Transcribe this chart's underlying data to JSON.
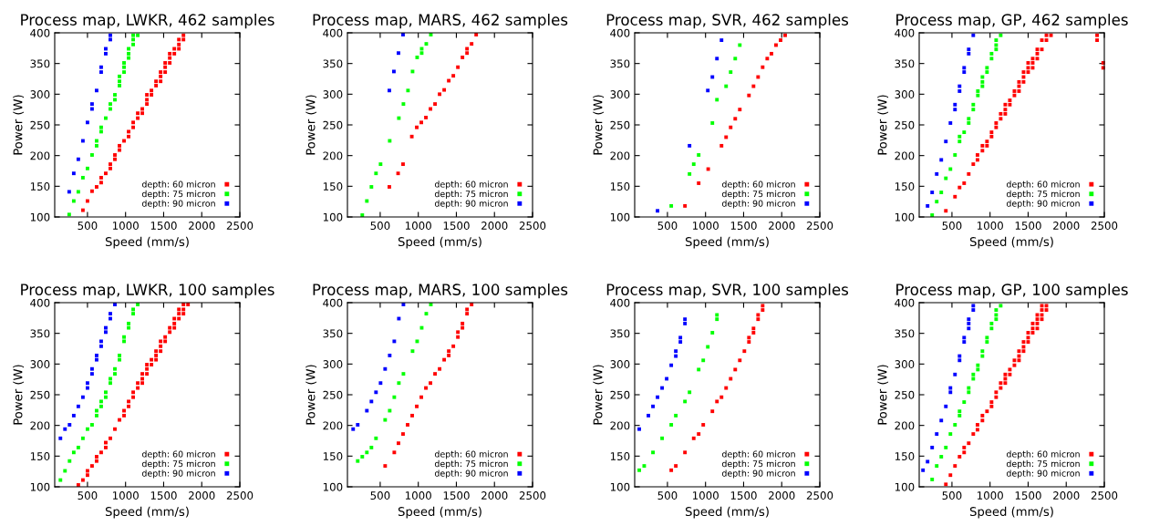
{
  "chart_data": [
    {
      "type": "scatter",
      "title": "Process map, LWKR, 462 samples",
      "xlabel": "Speed (mm/s)",
      "ylabel": "Power (W)",
      "xlim": [
        70,
        2500
      ],
      "ylim": [
        100,
        400
      ],
      "xticks": [
        500,
        1000,
        1500,
        2000,
        2500
      ],
      "yticks": [
        100,
        150,
        200,
        250,
        300,
        350,
        400
      ],
      "legend": "bottom right",
      "marker": "square",
      "series": [
        {
          "name": "depth: 60 micron",
          "color": "#ff0000",
          "x": [
            440,
            500,
            560,
            620,
            680,
            680,
            740,
            800,
            800,
            860,
            860,
            920,
            920,
            980,
            1040,
            1040,
            1100,
            1100,
            1160,
            1160,
            1220,
            1220,
            1280,
            1280,
            1280,
            1340,
            1340,
            1400,
            1400,
            1460,
            1460,
            1460,
            1520,
            1520,
            1520,
            1580,
            1580,
            1580,
            1640,
            1640,
            1700,
            1700,
            1700,
            1760,
            1760
          ],
          "values": [
            111,
            126,
            142,
            149,
            156,
            164,
            171,
            179,
            186,
            194,
            201,
            209,
            216,
            224,
            231,
            239,
            246,
            254,
            261,
            269,
            269,
            276,
            284,
            291,
            299,
            299,
            306,
            314,
            321,
            321,
            329,
            336,
            336,
            344,
            351,
            351,
            359,
            366,
            366,
            374,
            374,
            381,
            389,
            389,
            396
          ]
        },
        {
          "name": "depth: 75 micron",
          "color": "#00ff00",
          "x": [
            260,
            320,
            380,
            440,
            500,
            560,
            620,
            620,
            680,
            680,
            740,
            800,
            800,
            860,
            860,
            920,
            920,
            920,
            980,
            980,
            980,
            1040,
            1040,
            1040,
            1100,
            1100,
            1100,
            1160
          ],
          "values": [
            104,
            126,
            141,
            164,
            179,
            201,
            216,
            224,
            239,
            246,
            261,
            276,
            284,
            291,
            299,
            314,
            321,
            329,
            336,
            344,
            351,
            359,
            366,
            374,
            381,
            389,
            396,
            396
          ]
        },
        {
          "name": "depth: 90 micron",
          "color": "#0000ff",
          "x": [
            260,
            320,
            380,
            440,
            500,
            560,
            560,
            620,
            680,
            680,
            740,
            740,
            800,
            800
          ],
          "values": [
            141,
            171,
            194,
            224,
            254,
            276,
            284,
            306,
            336,
            344,
            366,
            374,
            389,
            396
          ]
        }
      ]
    },
    {
      "type": "scatter",
      "title": "Process map, MARS, 462 samples",
      "xlabel": "Speed (mm/s)",
      "ylabel": "Power (W)",
      "xlim": [
        70,
        2500
      ],
      "ylim": [
        100,
        400
      ],
      "xticks": [
        500,
        1000,
        1500,
        2000,
        2500
      ],
      "yticks": [
        100,
        150,
        200,
        250,
        300,
        350,
        400
      ],
      "legend": "bottom right",
      "marker": "square",
      "series": [
        {
          "name": "depth: 60 micron",
          "color": "#ff0000",
          "x": [
            620,
            735,
            800,
            915,
            980,
            1040,
            1100,
            1160,
            1220,
            1280,
            1340,
            1400,
            1460,
            1520,
            1580,
            1640,
            1640,
            1700,
            1760
          ],
          "values": [
            149,
            171,
            186,
            231,
            246,
            254,
            262,
            276,
            284,
            300,
            307,
            322,
            330,
            344,
            360,
            367,
            374,
            382,
            397
          ]
        },
        {
          "name": "depth: 75 micron",
          "color": "#00ff00",
          "x": [
            265,
            325,
            385,
            445,
            505,
            625,
            745,
            805,
            865,
            925,
            985,
            1045,
            1045,
            1105,
            1165
          ],
          "values": [
            103,
            126,
            149,
            171,
            186,
            224,
            261,
            284,
            306,
            337,
            360,
            367,
            374,
            382,
            397
          ]
        },
        {
          "name": "depth: 90 micron",
          "color": "#0000ff",
          "x": [
            620,
            680,
            740,
            800
          ],
          "values": [
            306,
            337,
            367,
            397
          ]
        }
      ]
    },
    {
      "type": "scatter",
      "title": "Process map, SVR, 462 samples",
      "xlabel": "Speed (mm/s)",
      "ylabel": "Power (W)",
      "xlim": [
        70,
        2500
      ],
      "ylim": [
        100,
        400
      ],
      "xticks": [
        500,
        1000,
        1500,
        2000,
        2500
      ],
      "yticks": [
        100,
        150,
        200,
        250,
        300,
        350,
        400
      ],
      "legend": "bottom right",
      "marker": "square",
      "series": [
        {
          "name": "depth: 60 micron",
          "color": "#ff0000",
          "x": [
            730,
            910,
            1035,
            1210,
            1270,
            1330,
            1390,
            1450,
            1570,
            1630,
            1690,
            1750,
            1810,
            1865,
            1925,
            1985,
            2045
          ],
          "values": [
            118,
            155,
            178,
            216,
            230,
            246,
            260,
            275,
            298,
            313,
            328,
            344,
            358,
            366,
            380,
            388,
            396
          ]
        },
        {
          "name": "depth: 75 micron",
          "color": "#00ff00",
          "x": [
            550,
            790,
            845,
            910,
            1090,
            1150,
            1270,
            1330,
            1390,
            1450
          ],
          "values": [
            118,
            170,
            186,
            201,
            253,
            291,
            313,
            336,
            358,
            380
          ]
        },
        {
          "name": "depth: 90 micron",
          "color": "#0000ff",
          "x": [
            370,
            790,
            1030,
            1090,
            1150,
            1210
          ],
          "values": [
            110,
            216,
            306,
            328,
            358,
            388
          ]
        }
      ]
    },
    {
      "type": "scatter",
      "title": "Process map, GP, 462 samples",
      "xlabel": "Speed (mm/s)",
      "ylabel": "Power (W)",
      "xlim": [
        70,
        2500
      ],
      "ylim": [
        100,
        400
      ],
      "xticks": [
        500,
        1000,
        1500,
        2000,
        2500
      ],
      "yticks": [
        100,
        150,
        200,
        250,
        300,
        350,
        400
      ],
      "legend": "bottom right",
      "marker": "square",
      "series": [
        {
          "name": "depth: 60 micron",
          "color": "#ff0000",
          "x": [
            420,
            540,
            600,
            660,
            720,
            780,
            835,
            835,
            900,
            900,
            960,
            960,
            1020,
            1020,
            1080,
            1080,
            1140,
            1140,
            1200,
            1200,
            1200,
            1260,
            1260,
            1320,
            1320,
            1380,
            1380,
            1380,
            1440,
            1440,
            1440,
            1500,
            1500,
            1500,
            1560,
            1560,
            1560,
            1620,
            1620,
            1620,
            1680,
            1680,
            1740,
            1740,
            1800,
            2405,
            2405,
            2485,
            2485
          ],
          "values": [
            110,
            133,
            148,
            155,
            170,
            186,
            193,
            201,
            208,
            216,
            216,
            223,
            231,
            238,
            246,
            253,
            260,
            268,
            268,
            275,
            283,
            283,
            290,
            298,
            305,
            305,
            313,
            320,
            320,
            328,
            336,
            336,
            343,
            351,
            343,
            351,
            358,
            358,
            366,
            373,
            373,
            388,
            388,
            396,
            396,
            396,
            388,
            351,
            343
          ]
        },
        {
          "name": "depth: 75 micron",
          "color": "#00ff00",
          "x": [
            240,
            300,
            360,
            420,
            480,
            540,
            600,
            600,
            660,
            720,
            720,
            780,
            780,
            840,
            840,
            900,
            900,
            900,
            960,
            960,
            1020,
            1020,
            1080,
            1080,
            1080,
            1140
          ],
          "values": [
            103,
            125,
            140,
            163,
            178,
            201,
            223,
            231,
            238,
            253,
            260,
            275,
            283,
            298,
            305,
            313,
            320,
            328,
            336,
            343,
            358,
            366,
            373,
            380,
            388,
            396
          ]
        },
        {
          "name": "depth: 90 micron",
          "color": "#0000ff",
          "x": [
            180,
            240,
            300,
            360,
            420,
            480,
            540,
            540,
            600,
            600,
            660,
            660,
            720,
            720,
            780
          ],
          "values": [
            118,
            140,
            170,
            193,
            223,
            253,
            275,
            283,
            305,
            313,
            336,
            343,
            366,
            373,
            396
          ]
        }
      ]
    },
    {
      "type": "scatter",
      "title": "Process map, LWKR, 100 samples",
      "xlabel": "Speed (mm/s)",
      "ylabel": "Power (W)",
      "xlim": [
        70,
        2500
      ],
      "ylim": [
        100,
        400
      ],
      "xticks": [
        500,
        1000,
        1500,
        2000,
        2500
      ],
      "yticks": [
        100,
        150,
        200,
        250,
        300,
        350,
        400
      ],
      "legend": "bottom right",
      "marker": "square",
      "series": [
        {
          "name": "depth: 60 micron",
          "color": "#ff0000",
          "x": [
            380,
            440,
            500,
            500,
            560,
            620,
            620,
            680,
            740,
            740,
            800,
            860,
            920,
            980,
            980,
            1040,
            1040,
            1100,
            1100,
            1160,
            1160,
            1220,
            1220,
            1220,
            1280,
            1280,
            1280,
            1340,
            1340,
            1400,
            1400,
            1400,
            1460,
            1460,
            1460,
            1520,
            1520,
            1580,
            1580,
            1640,
            1640,
            1640,
            1700,
            1700,
            1700,
            1760,
            1760,
            1760,
            1820
          ],
          "values": [
            103,
            111,
            119,
            126,
            134,
            142,
            149,
            156,
            164,
            172,
            179,
            194,
            209,
            216,
            224,
            231,
            239,
            246,
            254,
            261,
            269,
            269,
            276,
            284,
            284,
            292,
            299,
            299,
            307,
            307,
            314,
            321,
            321,
            329,
            337,
            337,
            344,
            352,
            359,
            359,
            366,
            374,
            374,
            382,
            389,
            382,
            389,
            397,
            397
          ]
        },
        {
          "name": "depth: 75 micron",
          "color": "#00ff00",
          "x": [
            145,
            205,
            265,
            320,
            380,
            440,
            500,
            560,
            620,
            620,
            680,
            680,
            740,
            740,
            800,
            800,
            860,
            860,
            920,
            920,
            980,
            980,
            1040,
            1040,
            1100,
            1100,
            1160
          ],
          "values": [
            111,
            126,
            142,
            156,
            164,
            179,
            194,
            201,
            216,
            224,
            231,
            239,
            246,
            254,
            269,
            276,
            284,
            292,
            307,
            314,
            337,
            344,
            359,
            366,
            382,
            389,
            397
          ]
        },
        {
          "name": "depth: 90 micron",
          "color": "#0000ff",
          "x": [
            145,
            205,
            265,
            320,
            380,
            440,
            500,
            500,
            560,
            560,
            620,
            620,
            680,
            680,
            740,
            740,
            800,
            800,
            860
          ],
          "values": [
            179,
            194,
            201,
            216,
            231,
            246,
            261,
            269,
            284,
            292,
            307,
            314,
            329,
            337,
            352,
            359,
            374,
            382,
            397
          ]
        }
      ]
    },
    {
      "type": "scatter",
      "title": "Process map, MARS, 100 samples",
      "xlabel": "Speed (mm/s)",
      "ylabel": "Power (W)",
      "xlim": [
        70,
        2500
      ],
      "ylim": [
        100,
        400
      ],
      "xticks": [
        500,
        1000,
        1500,
        2000,
        2500
      ],
      "yticks": [
        100,
        150,
        200,
        250,
        300,
        350,
        400
      ],
      "legend": "bottom right",
      "marker": "square",
      "series": [
        {
          "name": "depth: 60 micron",
          "color": "#ff0000",
          "x": [
            565,
            685,
            740,
            800,
            860,
            920,
            980,
            1040,
            1100,
            1160,
            1220,
            1280,
            1340,
            1400,
            1400,
            1460,
            1520,
            1520,
            1580,
            1580,
            1640,
            1640,
            1700
          ],
          "values": [
            134,
            156,
            171,
            186,
            201,
            216,
            231,
            246,
            261,
            269,
            284,
            292,
            307,
            314,
            321,
            329,
            344,
            352,
            359,
            366,
            382,
            389,
            397
          ]
        },
        {
          "name": "depth: 75 micron",
          "color": "#00ff00",
          "x": [
            205,
            265,
            325,
            385,
            445,
            565,
            625,
            685,
            745,
            805,
            925,
            985,
            1045,
            1105,
            1165
          ],
          "values": [
            142,
            149,
            156,
            164,
            179,
            209,
            224,
            246,
            269,
            284,
            321,
            337,
            359,
            382,
            397
          ]
        },
        {
          "name": "depth: 90 micron",
          "color": "#0000ff",
          "x": [
            145,
            205,
            325,
            385,
            445,
            505,
            565,
            625,
            685,
            745,
            805
          ],
          "values": [
            194,
            201,
            224,
            239,
            254,
            269,
            292,
            314,
            337,
            374,
            397
          ]
        }
      ]
    },
    {
      "type": "scatter",
      "title": "Process map, SVR, 100 samples",
      "xlabel": "Speed (mm/s)",
      "ylabel": "Power (W)",
      "xlim": [
        70,
        2500
      ],
      "ylim": [
        100,
        400
      ],
      "xticks": [
        500,
        1000,
        1500,
        2000,
        2500
      ],
      "yticks": [
        100,
        150,
        200,
        250,
        300,
        350,
        400
      ],
      "legend": "bottom right",
      "marker": "square",
      "series": [
        {
          "name": "depth: 60 micron",
          "color": "#ff0000",
          "x": [
            550,
            610,
            730,
            845,
            910,
            970,
            1090,
            1150,
            1210,
            1270,
            1330,
            1390,
            1450,
            1510,
            1570,
            1570,
            1630,
            1630,
            1690,
            1690,
            1750,
            1750
          ],
          "values": [
            127,
            134,
            156,
            179,
            186,
            201,
            223,
            239,
            246,
            261,
            276,
            291,
            306,
            321,
            336,
            343,
            351,
            358,
            373,
            380,
            388,
            395
          ]
        },
        {
          "name": "depth: 75 micron",
          "color": "#00ff00",
          "x": [
            130,
            195,
            310,
            430,
            550,
            610,
            730,
            790,
            910,
            970,
            1030,
            1090,
            1150,
            1150
          ],
          "values": [
            127,
            134,
            156,
            179,
            201,
            216,
            239,
            254,
            291,
            306,
            328,
            351,
            373,
            380
          ]
        },
        {
          "name": "depth: 90 micron",
          "color": "#0000ff",
          "x": [
            130,
            250,
            310,
            370,
            430,
            490,
            550,
            610,
            610,
            670,
            670,
            730,
            730
          ],
          "values": [
            194,
            216,
            231,
            246,
            261,
            276,
            298,
            313,
            321,
            336,
            343,
            366,
            373
          ]
        }
      ]
    },
    {
      "type": "scatter",
      "title": "Process map, GP, 100 samples",
      "xlabel": "Speed (mm/s)",
      "ylabel": "Power (W)",
      "xlim": [
        70,
        2500
      ],
      "ylim": [
        100,
        400
      ],
      "xticks": [
        500,
        1000,
        1500,
        2000,
        2500
      ],
      "yticks": [
        100,
        150,
        200,
        250,
        300,
        350,
        400
      ],
      "legend": "bottom right",
      "marker": "square",
      "series": [
        {
          "name": "depth: 60 micron",
          "color": "#ff0000",
          "x": [
            420,
            480,
            540,
            600,
            660,
            660,
            720,
            780,
            835,
            835,
            900,
            900,
            960,
            1020,
            1020,
            1080,
            1080,
            1140,
            1140,
            1200,
            1200,
            1200,
            1260,
            1260,
            1320,
            1320,
            1380,
            1380,
            1380,
            1440,
            1440,
            1440,
            1500,
            1500,
            1500,
            1560,
            1560,
            1560,
            1620,
            1620,
            1620,
            1620,
            1680,
            1680,
            1680,
            1680,
            1740,
            1740
          ],
          "values": [
            104,
            119,
            134,
            149,
            156,
            164,
            171,
            186,
            193,
            201,
            208,
            216,
            223,
            231,
            238,
            246,
            254,
            261,
            269,
            269,
            276,
            283,
            283,
            291,
            298,
            306,
            306,
            313,
            321,
            321,
            328,
            336,
            336,
            343,
            351,
            351,
            358,
            366,
            358,
            366,
            373,
            380,
            373,
            380,
            388,
            395,
            388,
            395
          ]
        },
        {
          "name": "depth: 75 micron",
          "color": "#00ff00",
          "x": [
            240,
            300,
            360,
            420,
            480,
            540,
            600,
            600,
            660,
            720,
            720,
            780,
            780,
            840,
            840,
            900,
            900,
            960,
            960,
            1020,
            1020,
            1080,
            1080,
            1080,
            1140
          ],
          "values": [
            112,
            134,
            149,
            164,
            186,
            201,
            216,
            223,
            238,
            254,
            261,
            276,
            283,
            291,
            298,
            313,
            321,
            336,
            343,
            358,
            366,
            373,
            380,
            388,
            395
          ]
        },
        {
          "name": "depth: 90 micron",
          "color": "#0000ff",
          "x": [
            120,
            180,
            240,
            300,
            360,
            420,
            480,
            480,
            540,
            600,
            600,
            660,
            660,
            720,
            720,
            720,
            780,
            780
          ],
          "values": [
            127,
            141,
            164,
            186,
            208,
            231,
            254,
            261,
            283,
            306,
            313,
            336,
            343,
            358,
            366,
            373,
            388,
            395
          ]
        }
      ]
    }
  ]
}
